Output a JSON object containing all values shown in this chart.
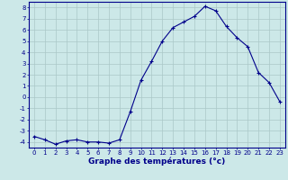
{
  "x": [
    0,
    1,
    2,
    3,
    4,
    5,
    6,
    7,
    8,
    9,
    10,
    11,
    12,
    13,
    14,
    15,
    16,
    17,
    18,
    19,
    20,
    21,
    22,
    23
  ],
  "y": [
    -3.5,
    -3.8,
    -4.2,
    -3.9,
    -3.8,
    -4.0,
    -4.0,
    -4.1,
    -3.8,
    -1.3,
    1.5,
    3.2,
    5.0,
    6.2,
    6.7,
    7.2,
    8.1,
    7.7,
    6.3,
    5.3,
    4.5,
    2.2,
    1.3,
    -0.4
  ],
  "xlabel": "Graphe des températures (°c)",
  "ylim": [
    -4.5,
    8.5
  ],
  "xlim": [
    -0.5,
    23.5
  ],
  "yticks": [
    -4,
    -3,
    -2,
    -1,
    0,
    1,
    2,
    3,
    4,
    5,
    6,
    7,
    8
  ],
  "xticks": [
    0,
    1,
    2,
    3,
    4,
    5,
    6,
    7,
    8,
    9,
    10,
    11,
    12,
    13,
    14,
    15,
    16,
    17,
    18,
    19,
    20,
    21,
    22,
    23
  ],
  "xtick_labels": [
    "0",
    "1",
    "2",
    "3",
    "4",
    "5",
    "6",
    "7",
    "8",
    "9",
    "10",
    "11",
    "12",
    "13",
    "14",
    "15",
    "16",
    "17",
    "18",
    "19",
    "20",
    "21",
    "22",
    "23"
  ],
  "line_color": "#00008b",
  "marker": "+",
  "bg_color": "#cce8e8",
  "grid_color": "#aac8c8",
  "axis_color": "#00008b",
  "label_color": "#00008b",
  "xlabel_fontsize": 6.5,
  "tick_fontsize": 5.0
}
